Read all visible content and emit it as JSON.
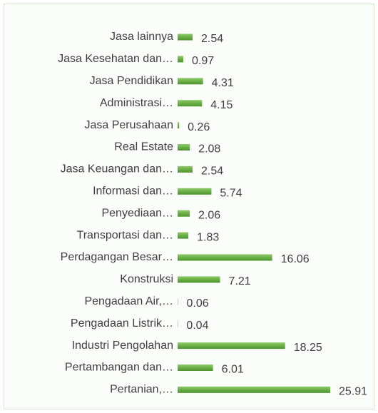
{
  "chart_data": {
    "type": "bar",
    "orientation": "horizontal",
    "categories": [
      "Jasa lainnya",
      "Jasa Kesehatan dan…",
      "Jasa Pendidikan",
      "Administrasi…",
      "Jasa Perusahaan",
      "Real Estate",
      "Jasa Keuangan dan…",
      "Informasi dan…",
      "Penyediaan…",
      "Transportasi dan…",
      "Perdagangan Besar…",
      "Konstruksi",
      "Pengadaan Air,…",
      "Pengadaan Listrik…",
      "Industri Pengolahan",
      "Pertambangan dan…",
      "Pertanian,…"
    ],
    "values": [
      2.54,
      0.97,
      4.31,
      4.15,
      0.26,
      2.08,
      2.54,
      5.74,
      2.06,
      1.83,
      16.06,
      7.21,
      0.06,
      0.04,
      18.25,
      6.01,
      25.91
    ],
    "color": "#6aaf45",
    "grid": false
  }
}
